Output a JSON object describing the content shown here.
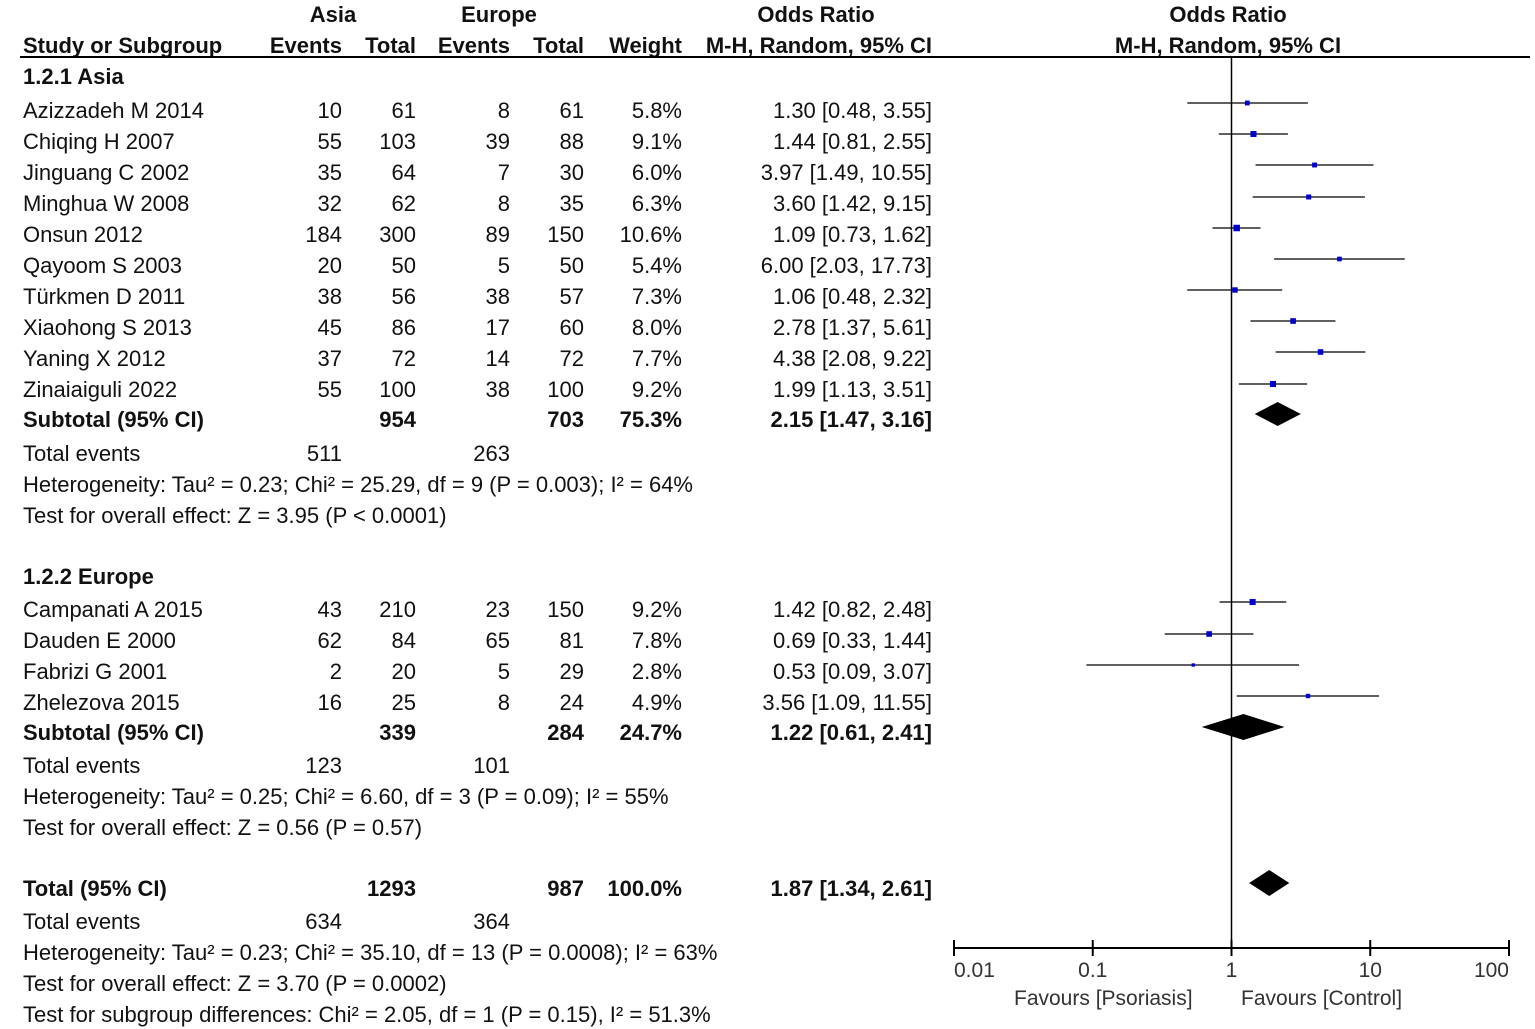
{
  "header": {
    "group1": "Asia",
    "group2": "Europe",
    "or_title": "Odds Ratio",
    "study_col": "Study or Subgroup",
    "events1": "Events",
    "total1": "Total",
    "events2": "Events",
    "total2": "Total",
    "weight": "Weight",
    "method": "M-H, Random, 95% CI",
    "plot_title": "Odds Ratio",
    "plot_method": "M-H, Random, 95% CI"
  },
  "subgroups": [
    {
      "title": "1.2.1 Asia",
      "studies": [
        {
          "name": "Azizzadeh M 2014",
          "e1": "10",
          "t1": "61",
          "e2": "8",
          "t2": "61",
          "weight": "5.8%",
          "ci": "1.30 [0.48, 3.55]"
        },
        {
          "name": "Chiqing H 2007",
          "e1": "55",
          "t1": "103",
          "e2": "39",
          "t2": "88",
          "weight": "9.1%",
          "ci": "1.44 [0.81, 2.55]"
        },
        {
          "name": "Jinguang C 2002",
          "e1": "35",
          "t1": "64",
          "e2": "7",
          "t2": "30",
          "weight": "6.0%",
          "ci": "3.97 [1.49, 10.55]"
        },
        {
          "name": "Minghua W 2008",
          "e1": "32",
          "t1": "62",
          "e2": "8",
          "t2": "35",
          "weight": "6.3%",
          "ci": "3.60 [1.42, 9.15]"
        },
        {
          "name": "Onsun 2012",
          "e1": "184",
          "t1": "300",
          "e2": "89",
          "t2": "150",
          "weight": "10.6%",
          "ci": "1.09 [0.73, 1.62]"
        },
        {
          "name": "Qayoom S 2003",
          "e1": "20",
          "t1": "50",
          "e2": "5",
          "t2": "50",
          "weight": "5.4%",
          "ci": "6.00 [2.03, 17.73]"
        },
        {
          "name": "Türkmen D 2011",
          "e1": "38",
          "t1": "56",
          "e2": "38",
          "t2": "57",
          "weight": "7.3%",
          "ci": "1.06 [0.48, 2.32]"
        },
        {
          "name": "Xiaohong S 2013",
          "e1": "45",
          "t1": "86",
          "e2": "17",
          "t2": "60",
          "weight": "8.0%",
          "ci": "2.78 [1.37, 5.61]"
        },
        {
          "name": "Yaning X 2012",
          "e1": "37",
          "t1": "72",
          "e2": "14",
          "t2": "72",
          "weight": "7.7%",
          "ci": "4.38 [2.08, 9.22]"
        },
        {
          "name": "Zinaiaiguli 2022",
          "e1": "55",
          "t1": "100",
          "e2": "38",
          "t2": "100",
          "weight": "9.2%",
          "ci": "1.99 [1.13, 3.51]"
        }
      ],
      "subtotal": {
        "label": "Subtotal (95% CI)",
        "t1": "954",
        "t2": "703",
        "weight": "75.3%",
        "ci": "2.15 [1.47, 3.16]"
      },
      "total_events": {
        "label": "Total events",
        "e1": "511",
        "e2": "263"
      },
      "heterogeneity": "Heterogeneity: Tau² = 0.23; Chi² = 25.29, df = 9 (P = 0.003); I² = 64%",
      "overall": "Test for overall effect: Z = 3.95 (P < 0.0001)"
    },
    {
      "title": "1.2.2 Europe",
      "studies": [
        {
          "name": "Campanati A 2015",
          "e1": "43",
          "t1": "210",
          "e2": "23",
          "t2": "150",
          "weight": "9.2%",
          "ci": "1.42 [0.82, 2.48]"
        },
        {
          "name": "Dauden E 2000",
          "e1": "62",
          "t1": "84",
          "e2": "65",
          "t2": "81",
          "weight": "7.8%",
          "ci": "0.69 [0.33, 1.44]"
        },
        {
          "name": "Fabrizi G 2001",
          "e1": "2",
          "t1": "20",
          "e2": "5",
          "t2": "29",
          "weight": "2.8%",
          "ci": "0.53 [0.09, 3.07]"
        },
        {
          "name": "Zhelezova 2015",
          "e1": "16",
          "t1": "25",
          "e2": "8",
          "t2": "24",
          "weight": "4.9%",
          "ci": "3.56 [1.09, 11.55]"
        }
      ],
      "subtotal": {
        "label": "Subtotal (95% CI)",
        "t1": "339",
        "t2": "284",
        "weight": "24.7%",
        "ci": "1.22 [0.61, 2.41]"
      },
      "total_events": {
        "label": "Total events",
        "e1": "123",
        "e2": "101"
      },
      "heterogeneity": "Heterogeneity: Tau² = 0.25; Chi² = 6.60, df = 3 (P = 0.09); I² = 55%",
      "overall": "Test for overall effect: Z = 0.56 (P = 0.57)"
    }
  ],
  "total": {
    "label": "Total (95% CI)",
    "t1": "1293",
    "t2": "987",
    "weight": "100.0%",
    "ci": "1.87 [1.34, 2.61]",
    "events_label": "Total events",
    "e1": "634",
    "e2": "364",
    "heterogeneity": "Heterogeneity: Tau² = 0.23; Chi² = 35.10, df = 13 (P = 0.0008); I² = 63%",
    "overall": "Test for overall effect: Z = 3.70 (P = 0.0002)",
    "subgroup_diff": "Test for subgroup differences: Chi² = 2.05, df = 1 (P = 0.15), I² = 51.3%"
  },
  "axis": {
    "favours_left": "Favours [Psoriasis]",
    "favours_right": "Favours [Control]"
  },
  "chart_data": {
    "type": "forest",
    "title": "Odds Ratio M-H, Random, 95% CI",
    "x_scale": "log",
    "xlim": [
      0.01,
      100
    ],
    "null_line": 1,
    "ticks": [
      {
        "value": 0.01,
        "label": "0.01"
      },
      {
        "value": 0.1,
        "label": "0.1"
      },
      {
        "value": 1,
        "label": "1"
      },
      {
        "value": 10,
        "label": "10"
      },
      {
        "value": 100,
        "label": "100"
      }
    ],
    "colors": {
      "study_marker": "#0000cc",
      "line": "#000000",
      "diamond": "#000000"
    },
    "studies": [
      {
        "name": "Azizzadeh M 2014",
        "or": 1.3,
        "lo": 0.48,
        "hi": 3.55,
        "weight": 5.8
      },
      {
        "name": "Chiqing H 2007",
        "or": 1.44,
        "lo": 0.81,
        "hi": 2.55,
        "weight": 9.1
      },
      {
        "name": "Jinguang C 2002",
        "or": 3.97,
        "lo": 1.49,
        "hi": 10.55,
        "weight": 6.0
      },
      {
        "name": "Minghua W 2008",
        "or": 3.6,
        "lo": 1.42,
        "hi": 9.15,
        "weight": 6.3
      },
      {
        "name": "Onsun 2012",
        "or": 1.09,
        "lo": 0.73,
        "hi": 1.62,
        "weight": 10.6
      },
      {
        "name": "Qayoom S 2003",
        "or": 6.0,
        "lo": 2.03,
        "hi": 17.73,
        "weight": 5.4
      },
      {
        "name": "Türkmen D 2011",
        "or": 1.06,
        "lo": 0.48,
        "hi": 2.32,
        "weight": 7.3
      },
      {
        "name": "Xiaohong S 2013",
        "or": 2.78,
        "lo": 1.37,
        "hi": 5.61,
        "weight": 8.0
      },
      {
        "name": "Yaning X 2012",
        "or": 4.38,
        "lo": 2.08,
        "hi": 9.22,
        "weight": 7.7
      },
      {
        "name": "Zinaiaiguli 2022",
        "or": 1.99,
        "lo": 1.13,
        "hi": 3.51,
        "weight": 9.2
      },
      {
        "name": "Campanati A 2015",
        "or": 1.42,
        "lo": 0.82,
        "hi": 2.48,
        "weight": 9.2
      },
      {
        "name": "Dauden E 2000",
        "or": 0.69,
        "lo": 0.33,
        "hi": 1.44,
        "weight": 7.8
      },
      {
        "name": "Fabrizi G 2001",
        "or": 0.53,
        "lo": 0.09,
        "hi": 3.07,
        "weight": 2.8
      },
      {
        "name": "Zhelezova 2015",
        "or": 3.56,
        "lo": 1.09,
        "hi": 11.55,
        "weight": 4.9
      }
    ],
    "diamonds": [
      {
        "name": "Subtotal Asia",
        "or": 2.15,
        "lo": 1.47,
        "hi": 3.16
      },
      {
        "name": "Subtotal Europe",
        "or": 1.22,
        "lo": 0.61,
        "hi": 2.41
      },
      {
        "name": "Total",
        "or": 1.87,
        "lo": 1.34,
        "hi": 2.61
      }
    ]
  }
}
